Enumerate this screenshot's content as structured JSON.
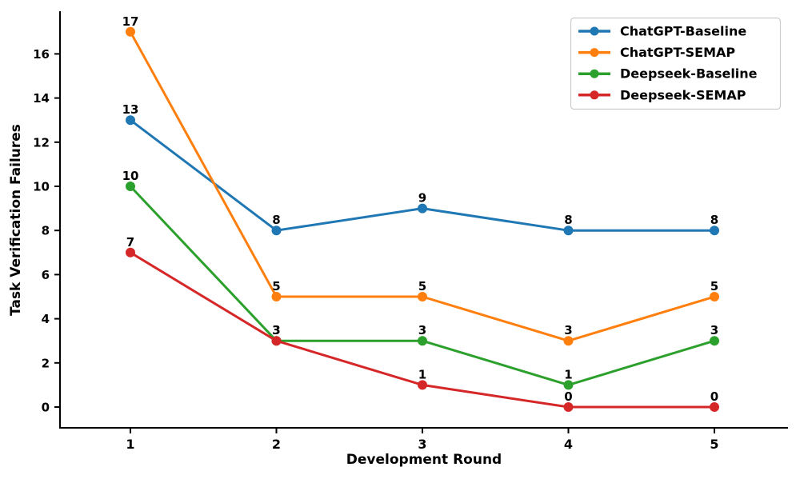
{
  "chart_data": {
    "type": "line",
    "x": [
      1,
      2,
      3,
      4,
      5
    ],
    "series": [
      {
        "name": "ChatGPT-Baseline",
        "color": "#1f77b4",
        "values": [
          13,
          8,
          9,
          8,
          8
        ]
      },
      {
        "name": "ChatGPT-SEMAP",
        "color": "#ff7f0e",
        "values": [
          17,
          5,
          5,
          3,
          5
        ]
      },
      {
        "name": "Deepseek-Baseline",
        "color": "#2ca02c",
        "values": [
          10,
          3,
          3,
          1,
          3
        ]
      },
      {
        "name": "Deepseek-SEMAP",
        "color": "#d62728",
        "values": [
          7,
          3,
          1,
          0,
          0
        ]
      }
    ],
    "xlabel": "Development Round",
    "ylabel": "Task Verification Failures",
    "yticks": [
      0,
      2,
      4,
      6,
      8,
      10,
      12,
      14,
      16
    ],
    "xlim": [
      0.52,
      5.5
    ],
    "ylim": [
      -0.95,
      17.95
    ],
    "grid": false,
    "data_labels": true,
    "legend_position": "upper right",
    "legend_border_color": "#cccccc",
    "axis_color": "#000000"
  }
}
